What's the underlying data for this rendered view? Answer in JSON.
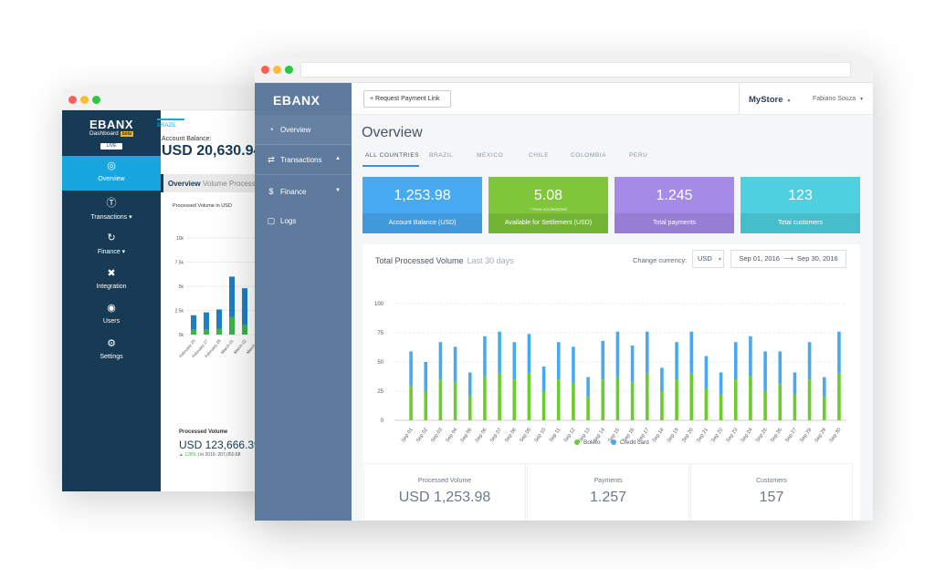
{
  "back_window": {
    "logo": "EBANX",
    "dashboard": "Dashboard",
    "beta": "beta",
    "live": "LIVE",
    "country": "BRAZIL",
    "account_balance_label": "Account Balance:",
    "account_balance": "USD 20,630.94",
    "nav": [
      {
        "label": "Overview",
        "icon": "globe-icon"
      },
      {
        "label": "Transactions ▾",
        "icon": "dollar-circle-icon"
      },
      {
        "label": "Finance ▾",
        "icon": "refresh-icon"
      },
      {
        "label": "Integration",
        "icon": "tools-icon"
      },
      {
        "label": "Users",
        "icon": "users-icon"
      },
      {
        "label": "Settings",
        "icon": "gear-icon"
      }
    ],
    "tab_overview": "Overview",
    "tab_volume": "Volume Process",
    "mini_chart_title": "Processed Volume in USD",
    "mini_chart_yticks": [
      "10k",
      "7.5k",
      "5k",
      "2.5k",
      "0k"
    ],
    "mini_chart_xticks": [
      "February 26",
      "February 27",
      "February 28",
      "March 01",
      "March 02",
      "March 03"
    ],
    "mini_chart_values": [
      {
        "green": 500,
        "blue": 1500
      },
      {
        "green": 500,
        "blue": 1800
      },
      {
        "green": 600,
        "blue": 2000
      },
      {
        "green": 1800,
        "blue": 4200
      },
      {
        "green": 1000,
        "blue": 3800
      },
      {
        "green": 800,
        "blue": 2400
      }
    ],
    "processed_volume_label": "Processed Volume",
    "processed_volume": "USD 123,666.39",
    "processed_volume_change": "▲ 128%",
    "processed_volume_note": "| in 2016: 207,050.68",
    "colors": {
      "sidebar": "#173a55",
      "active": "#17a7e0"
    }
  },
  "sidebar": {
    "logo": "EBANX",
    "items": [
      {
        "label": "Overview",
        "icon": "pie-chart-icon"
      },
      {
        "label": "Transactions",
        "icon": "transfer-icon",
        "caret": "▲"
      },
      {
        "label": "Finance",
        "icon": "dollar-icon",
        "caret": "▼"
      },
      {
        "label": "Logs",
        "icon": "document-icon"
      }
    ]
  },
  "topbar": {
    "request_button": "Request Payment Link",
    "store": "MyStore",
    "user": "Fabiano Souza"
  },
  "page_title": "Overview",
  "tabs": [
    "ALL COUNTRIES",
    "BRAZIL",
    "MEXICO",
    "CHILE",
    "COLOMBIA",
    "PERU"
  ],
  "active_tab": "ALL COUNTRIES",
  "cards": [
    {
      "value": "1,253.98",
      "sub": "",
      "label": "Account Balance (USD)",
      "color": "#47a9f0"
    },
    {
      "value": "5.08",
      "sub": "* Fees not deducted",
      "label": "Available for Settlement (USD)",
      "color": "#80c63a"
    },
    {
      "value": "1.245",
      "sub": "",
      "label": "Total payments",
      "color": "#a68ae8"
    },
    {
      "value": "123",
      "sub": "",
      "label": "Total customers",
      "color": "#4ed0e0"
    }
  ],
  "panel": {
    "title": "Total Processed Volume",
    "subtitle": "Last 30 days",
    "currency_label": "Change currency:",
    "currency": "USD",
    "date_from": "Sep 01, 2016",
    "date_to": "Sep 30, 2016",
    "legend": [
      {
        "label": "Boleto",
        "color": "#6ccc2e"
      },
      {
        "label": "Credit card",
        "color": "#47a9f0"
      }
    ]
  },
  "chart_data": {
    "type": "bar",
    "stacked": true,
    "ylim": [
      0,
      100
    ],
    "yticks": [
      0,
      25,
      50,
      75,
      100
    ],
    "categories": [
      "Sep 01",
      "Sep 02",
      "Sep 03",
      "Sep 04",
      "Sep 05",
      "Sep 06",
      "Sep 07",
      "Sep 08",
      "Sep 09",
      "Sep 10",
      "Sep 11",
      "Sep 12",
      "Sep 13",
      "Sep 14",
      "Sep 15",
      "Sep 16",
      "Sep 17",
      "Sep 18",
      "Sep 19",
      "Sep 20",
      "Sep 21",
      "Sep 22",
      "Sep 23",
      "Sep 24",
      "Sep 25",
      "Sep 26",
      "Sep 27",
      "Sep 28",
      "Sep 29",
      "Sep 30"
    ],
    "series": [
      {
        "name": "Boleto",
        "color": "#6ccc2e",
        "values": [
          30,
          25,
          35,
          33,
          21,
          37,
          40,
          35,
          40,
          25,
          35,
          32,
          20,
          35,
          37,
          33,
          40,
          25,
          35,
          40,
          27,
          22,
          35,
          38,
          25,
          31,
          22,
          35,
          20,
          40
        ]
      },
      {
        "name": "Credit card",
        "color": "#47a9f0",
        "values": [
          29,
          25,
          32,
          30,
          20,
          35,
          36,
          32,
          34,
          21,
          32,
          31,
          17,
          33,
          39,
          31,
          36,
          20,
          32,
          36,
          28,
          19,
          32,
          34,
          34,
          28,
          19,
          32,
          17,
          36
        ]
      }
    ],
    "grid": true,
    "legend_position": "bottom"
  },
  "stats": [
    {
      "label": "Processed Volume",
      "value": "USD 1,253.98"
    },
    {
      "label": "Payments",
      "value": "1.257"
    },
    {
      "label": "Customers",
      "value": "157"
    }
  ]
}
